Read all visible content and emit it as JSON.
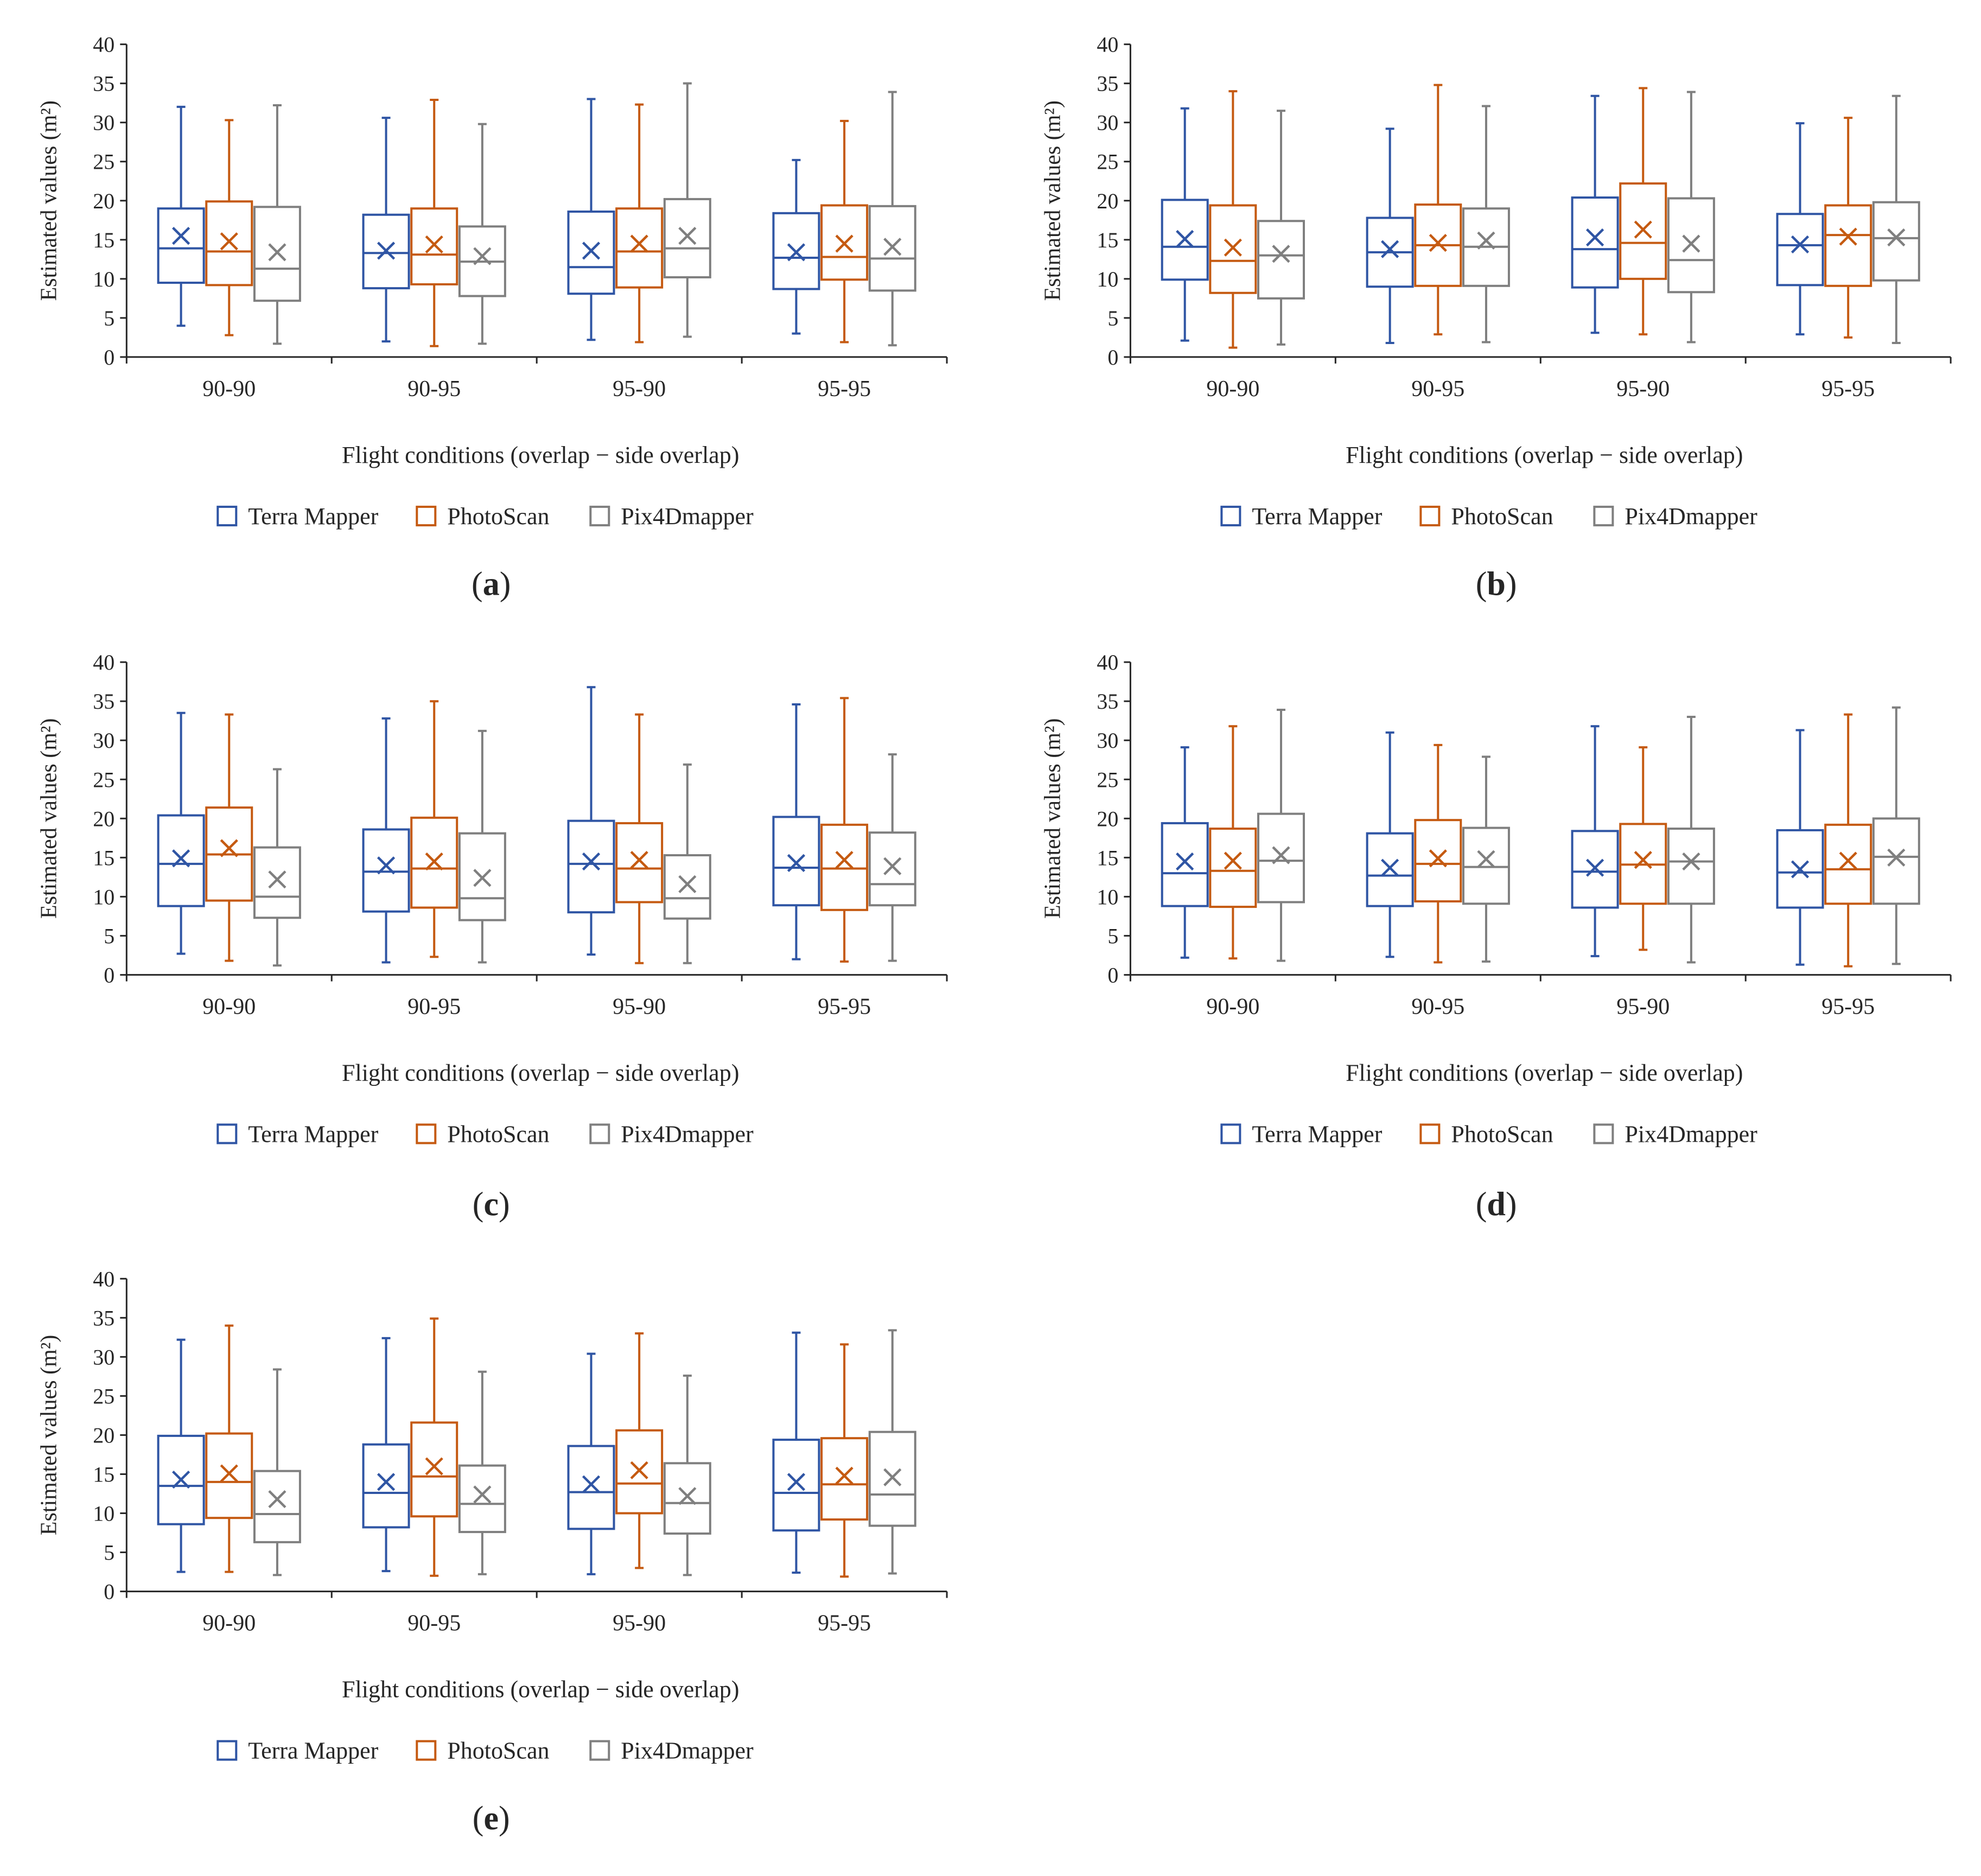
{
  "ylabel_default": "Estimated values (m²)",
  "xlabel": "Flight conditions (overlap − side overlap)",
  "categories": [
    "90-90",
    "90-95",
    "95-90",
    "95-95"
  ],
  "legend": [
    {
      "name": "Terra Mapper",
      "color": "#2f55a4"
    },
    {
      "name": "PhotoScan",
      "color": "#c55a11"
    },
    {
      "name": "Pix4Dmapper",
      "color": "#7f7f7f"
    }
  ],
  "chart_data": [
    {
      "type": "boxplot",
      "panel": "a",
      "ylabel": "Estimated values (m²)",
      "xlabel": "Flight conditions (overlap − side overlap)",
      "ylim": [
        0,
        40
      ],
      "yticks": [
        0,
        5,
        10,
        15,
        20,
        25,
        30,
        35,
        40
      ],
      "categories": [
        "90-90",
        "90-95",
        "95-90",
        "95-95"
      ],
      "legend_position": "bottom",
      "grid": false,
      "series": [
        {
          "name": "Terra Mapper",
          "boxes": [
            {
              "min": 4.0,
              "q1": 9.5,
              "median": 13.9,
              "q3": 19.0,
              "max": 32.0,
              "mean": 15.5
            },
            {
              "min": 2.0,
              "q1": 8.8,
              "median": 13.3,
              "q3": 18.2,
              "max": 30.6,
              "mean": 13.6
            },
            {
              "min": 2.2,
              "q1": 8.1,
              "median": 11.5,
              "q3": 18.6,
              "max": 33.0,
              "mean": 13.6
            },
            {
              "min": 3.0,
              "q1": 8.7,
              "median": 12.7,
              "q3": 18.4,
              "max": 25.2,
              "mean": 13.4
            }
          ]
        },
        {
          "name": "PhotoScan",
          "boxes": [
            {
              "min": 2.8,
              "q1": 9.2,
              "median": 13.5,
              "q3": 19.9,
              "max": 30.3,
              "mean": 14.8
            },
            {
              "min": 1.4,
              "q1": 9.3,
              "median": 13.1,
              "q3": 19.0,
              "max": 32.9,
              "mean": 14.4
            },
            {
              "min": 1.9,
              "q1": 8.9,
              "median": 13.5,
              "q3": 19.0,
              "max": 32.3,
              "mean": 14.5
            },
            {
              "min": 1.9,
              "q1": 9.9,
              "median": 12.8,
              "q3": 19.4,
              "max": 30.2,
              "mean": 14.5
            }
          ]
        },
        {
          "name": "Pix4Dmapper",
          "boxes": [
            {
              "min": 1.7,
              "q1": 7.2,
              "median": 11.3,
              "q3": 19.2,
              "max": 32.2,
              "mean": 13.4
            },
            {
              "min": 1.7,
              "q1": 7.8,
              "median": 12.2,
              "q3": 16.7,
              "max": 29.8,
              "mean": 12.9
            },
            {
              "min": 2.6,
              "q1": 10.2,
              "median": 13.9,
              "q3": 20.2,
              "max": 35.0,
              "mean": 15.5
            },
            {
              "min": 1.5,
              "q1": 8.5,
              "median": 12.6,
              "q3": 19.3,
              "max": 33.9,
              "mean": 14.1
            }
          ]
        }
      ]
    },
    {
      "type": "boxplot",
      "panel": "b",
      "ylabel": "Estimated values (m²)",
      "xlabel": "Flight conditions (overlap − side overlap)",
      "ylim": [
        0,
        40
      ],
      "yticks": [
        0,
        5,
        10,
        15,
        20,
        25,
        30,
        35,
        40
      ],
      "categories": [
        "90-90",
        "90-95",
        "95-90",
        "95-95"
      ],
      "legend_position": "bottom",
      "grid": false,
      "series": [
        {
          "name": "Terra Mapper",
          "boxes": [
            {
              "min": 2.1,
              "q1": 9.9,
              "median": 14.1,
              "q3": 20.1,
              "max": 31.8,
              "mean": 15.1
            },
            {
              "min": 1.8,
              "q1": 9.0,
              "median": 13.4,
              "q3": 17.8,
              "max": 29.2,
              "mean": 13.8
            },
            {
              "min": 3.1,
              "q1": 8.9,
              "median": 13.8,
              "q3": 20.4,
              "max": 33.4,
              "mean": 15.3
            },
            {
              "min": 2.9,
              "q1": 9.2,
              "median": 14.3,
              "q3": 18.3,
              "max": 29.9,
              "mean": 14.4
            }
          ]
        },
        {
          "name": "PhotoScan",
          "boxes": [
            {
              "min": 1.2,
              "q1": 8.2,
              "median": 12.3,
              "q3": 19.4,
              "max": 34.0,
              "mean": 14.0
            },
            {
              "min": 2.9,
              "q1": 9.1,
              "median": 14.3,
              "q3": 19.5,
              "max": 34.8,
              "mean": 14.6
            },
            {
              "min": 2.9,
              "q1": 10.0,
              "median": 14.6,
              "q3": 22.2,
              "max": 34.4,
              "mean": 16.3
            },
            {
              "min": 2.5,
              "q1": 9.1,
              "median": 15.6,
              "q3": 19.4,
              "max": 30.6,
              "mean": 15.4
            }
          ]
        },
        {
          "name": "Pix4Dmapper",
          "boxes": [
            {
              "min": 1.6,
              "q1": 7.5,
              "median": 13.0,
              "q3": 17.4,
              "max": 31.5,
              "mean": 13.2
            },
            {
              "min": 1.9,
              "q1": 9.1,
              "median": 14.1,
              "q3": 19.0,
              "max": 32.1,
              "mean": 14.9
            },
            {
              "min": 1.9,
              "q1": 8.3,
              "median": 12.4,
              "q3": 20.3,
              "max": 33.9,
              "mean": 14.5
            },
            {
              "min": 1.8,
              "q1": 9.8,
              "median": 15.2,
              "q3": 19.8,
              "max": 33.4,
              "mean": 15.3
            }
          ]
        }
      ]
    },
    {
      "type": "boxplot",
      "panel": "c",
      "ylabel": "Estimated values (m²)",
      "xlabel": "Flight conditions (overlap − side overlap)",
      "ylim": [
        0,
        40
      ],
      "yticks": [
        0,
        5,
        10,
        15,
        20,
        25,
        30,
        35,
        40
      ],
      "categories": [
        "90-90",
        "90-95",
        "95-90",
        "95-95"
      ],
      "legend_position": "bottom",
      "grid": false,
      "series": [
        {
          "name": "Terra Mapper",
          "boxes": [
            {
              "min": 2.7,
              "q1": 8.8,
              "median": 14.2,
              "q3": 20.4,
              "max": 33.5,
              "mean": 14.9
            },
            {
              "min": 1.6,
              "q1": 8.1,
              "median": 13.2,
              "q3": 18.6,
              "max": 32.8,
              "mean": 14.0
            },
            {
              "min": 2.6,
              "q1": 8.0,
              "median": 14.2,
              "q3": 19.7,
              "max": 36.8,
              "mean": 14.5
            },
            {
              "min": 2.0,
              "q1": 8.9,
              "median": 13.7,
              "q3": 20.2,
              "max": 34.6,
              "mean": 14.3
            }
          ]
        },
        {
          "name": "PhotoScan",
          "boxes": [
            {
              "min": 1.8,
              "q1": 9.5,
              "median": 15.4,
              "q3": 21.4,
              "max": 33.3,
              "mean": 16.2
            },
            {
              "min": 2.3,
              "q1": 8.6,
              "median": 13.6,
              "q3": 20.1,
              "max": 35.0,
              "mean": 14.5
            },
            {
              "min": 1.5,
              "q1": 9.3,
              "median": 13.6,
              "q3": 19.4,
              "max": 33.3,
              "mean": 14.7
            },
            {
              "min": 1.7,
              "q1": 8.3,
              "median": 13.6,
              "q3": 19.2,
              "max": 35.4,
              "mean": 14.7
            }
          ]
        },
        {
          "name": "Pix4Dmapper",
          "boxes": [
            {
              "min": 1.2,
              "q1": 7.3,
              "median": 10.0,
              "q3": 16.3,
              "max": 26.3,
              "mean": 12.2
            },
            {
              "min": 1.6,
              "q1": 7.0,
              "median": 9.8,
              "q3": 18.1,
              "max": 31.2,
              "mean": 12.4
            },
            {
              "min": 1.5,
              "q1": 7.2,
              "median": 9.8,
              "q3": 15.3,
              "max": 26.9,
              "mean": 11.6
            },
            {
              "min": 1.8,
              "q1": 8.9,
              "median": 11.6,
              "q3": 18.2,
              "max": 28.2,
              "mean": 13.9
            }
          ]
        }
      ]
    },
    {
      "type": "boxplot",
      "panel": "d",
      "ylabel": "Estimated  values (m²)",
      "xlabel": "Flight conditions (overlap − side overlap)",
      "ylim": [
        0,
        40
      ],
      "yticks": [
        0,
        5,
        10,
        15,
        20,
        25,
        30,
        35,
        40
      ],
      "categories": [
        "90-90",
        "90-95",
        "95-90",
        "95-95"
      ],
      "legend_position": "bottom",
      "grid": false,
      "series": [
        {
          "name": "Terra Mapper",
          "boxes": [
            {
              "min": 2.2,
              "q1": 8.8,
              "median": 13.0,
              "q3": 19.4,
              "max": 29.1,
              "mean": 14.5
            },
            {
              "min": 2.3,
              "q1": 8.8,
              "median": 12.7,
              "q3": 18.1,
              "max": 31.0,
              "mean": 13.7
            },
            {
              "min": 2.4,
              "q1": 8.6,
              "median": 13.2,
              "q3": 18.4,
              "max": 31.8,
              "mean": 13.7
            },
            {
              "min": 1.3,
              "q1": 8.6,
              "median": 13.1,
              "q3": 18.5,
              "max": 31.3,
              "mean": 13.5
            }
          ]
        },
        {
          "name": "PhotoScan",
          "boxes": [
            {
              "min": 2.1,
              "q1": 8.7,
              "median": 13.3,
              "q3": 18.7,
              "max": 31.8,
              "mean": 14.6
            },
            {
              "min": 1.6,
              "q1": 9.4,
              "median": 14.2,
              "q3": 19.8,
              "max": 29.4,
              "mean": 14.9
            },
            {
              "min": 3.2,
              "q1": 9.1,
              "median": 14.1,
              "q3": 19.3,
              "max": 29.1,
              "mean": 14.7
            },
            {
              "min": 1.1,
              "q1": 9.1,
              "median": 13.5,
              "q3": 19.2,
              "max": 33.3,
              "mean": 14.6
            }
          ]
        },
        {
          "name": "Pix4Dmapper",
          "boxes": [
            {
              "min": 1.8,
              "q1": 9.3,
              "median": 14.6,
              "q3": 20.6,
              "max": 33.9,
              "mean": 15.3
            },
            {
              "min": 1.7,
              "q1": 9.1,
              "median": 13.8,
              "q3": 18.8,
              "max": 27.9,
              "mean": 14.8
            },
            {
              "min": 1.6,
              "q1": 9.1,
              "median": 14.5,
              "q3": 18.7,
              "max": 33.0,
              "mean": 14.5
            },
            {
              "min": 1.4,
              "q1": 9.1,
              "median": 15.1,
              "q3": 20.0,
              "max": 34.2,
              "mean": 15.0
            }
          ]
        }
      ]
    },
    {
      "type": "boxplot",
      "panel": "e",
      "ylabel": "Estimated values (m²)",
      "xlabel": "Flight conditions (overlap − side overlap)",
      "ylim": [
        0,
        40
      ],
      "yticks": [
        0,
        5,
        10,
        15,
        20,
        25,
        30,
        35,
        40
      ],
      "categories": [
        "90-90",
        "90-95",
        "95-90",
        "95-95"
      ],
      "legend_position": "bottom",
      "grid": false,
      "series": [
        {
          "name": "Terra Mapper",
          "boxes": [
            {
              "min": 2.5,
              "q1": 8.6,
              "median": 13.5,
              "q3": 19.9,
              "max": 32.2,
              "mean": 14.3
            },
            {
              "min": 2.6,
              "q1": 8.2,
              "median": 12.6,
              "q3": 18.8,
              "max": 32.4,
              "mean": 14.0
            },
            {
              "min": 2.2,
              "q1": 8.0,
              "median": 12.7,
              "q3": 18.6,
              "max": 30.4,
              "mean": 13.7
            },
            {
              "min": 2.4,
              "q1": 7.8,
              "median": 12.6,
              "q3": 19.4,
              "max": 33.1,
              "mean": 14.0
            }
          ]
        },
        {
          "name": "PhotoScan",
          "boxes": [
            {
              "min": 2.5,
              "q1": 9.4,
              "median": 14.0,
              "q3": 20.2,
              "max": 34.0,
              "mean": 15.1
            },
            {
              "min": 2.0,
              "q1": 9.6,
              "median": 14.7,
              "q3": 21.6,
              "max": 34.9,
              "mean": 16.0
            },
            {
              "min": 3.0,
              "q1": 10.0,
              "median": 13.8,
              "q3": 20.6,
              "max": 33.0,
              "mean": 15.5
            },
            {
              "min": 1.9,
              "q1": 9.2,
              "median": 13.7,
              "q3": 19.6,
              "max": 31.6,
              "mean": 14.8
            }
          ]
        },
        {
          "name": "Pix4Dmapper",
          "boxes": [
            {
              "min": 2.1,
              "q1": 6.3,
              "median": 9.9,
              "q3": 15.4,
              "max": 28.4,
              "mean": 11.8
            },
            {
              "min": 2.2,
              "q1": 7.6,
              "median": 11.2,
              "q3": 16.1,
              "max": 28.1,
              "mean": 12.4
            },
            {
              "min": 2.1,
              "q1": 7.4,
              "median": 11.3,
              "q3": 16.4,
              "max": 27.6,
              "mean": 12.2
            },
            {
              "min": 2.3,
              "q1": 8.4,
              "median": 12.4,
              "q3": 20.4,
              "max": 33.4,
              "mean": 14.6
            }
          ]
        }
      ]
    }
  ]
}
